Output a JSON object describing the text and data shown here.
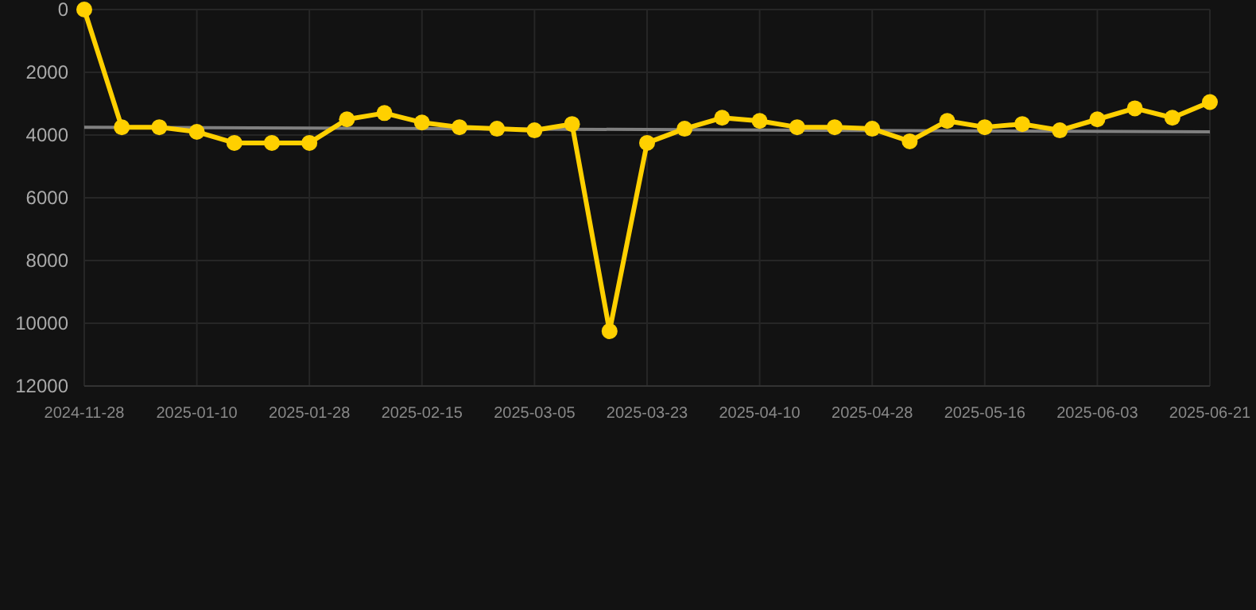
{
  "chart_data": {
    "type": "line",
    "categories": [
      "2024-11-28",
      null,
      null,
      "2025-01-10",
      null,
      null,
      "2025-01-28",
      null,
      null,
      "2025-02-15",
      null,
      null,
      "2025-03-05",
      null,
      null,
      "2025-03-23",
      null,
      null,
      "2025-04-10",
      null,
      null,
      "2025-04-28",
      null,
      null,
      "2025-05-16",
      null,
      null,
      "2025-06-03",
      null,
      null,
      "2025-06-21"
    ],
    "series": [
      {
        "color": "#ffd000",
        "marker": "circle",
        "values": [
          0,
          3750,
          3750,
          3900,
          4250,
          4250,
          4250,
          3500,
          3300,
          3600,
          3750,
          3800,
          3850,
          3650,
          10250,
          4250,
          3800,
          3450,
          3550,
          3750,
          3750,
          3800,
          4200,
          3550,
          3750,
          3650,
          3850,
          3500,
          3150,
          3450,
          2950
        ]
      },
      {
        "type": "line",
        "color": "#808080",
        "marker": "none",
        "values": [
          3750,
          null,
          null,
          null,
          null,
          null,
          null,
          null,
          null,
          null,
          null,
          null,
          null,
          null,
          null,
          null,
          null,
          null,
          null,
          null,
          null,
          null,
          null,
          null,
          null,
          null,
          null,
          null,
          null,
          null,
          3900
        ]
      }
    ],
    "ylim": [
      12000,
      0
    ],
    "yticks": [
      0,
      2000,
      4000,
      6000,
      8000,
      10000,
      12000
    ],
    "grid": true
  }
}
